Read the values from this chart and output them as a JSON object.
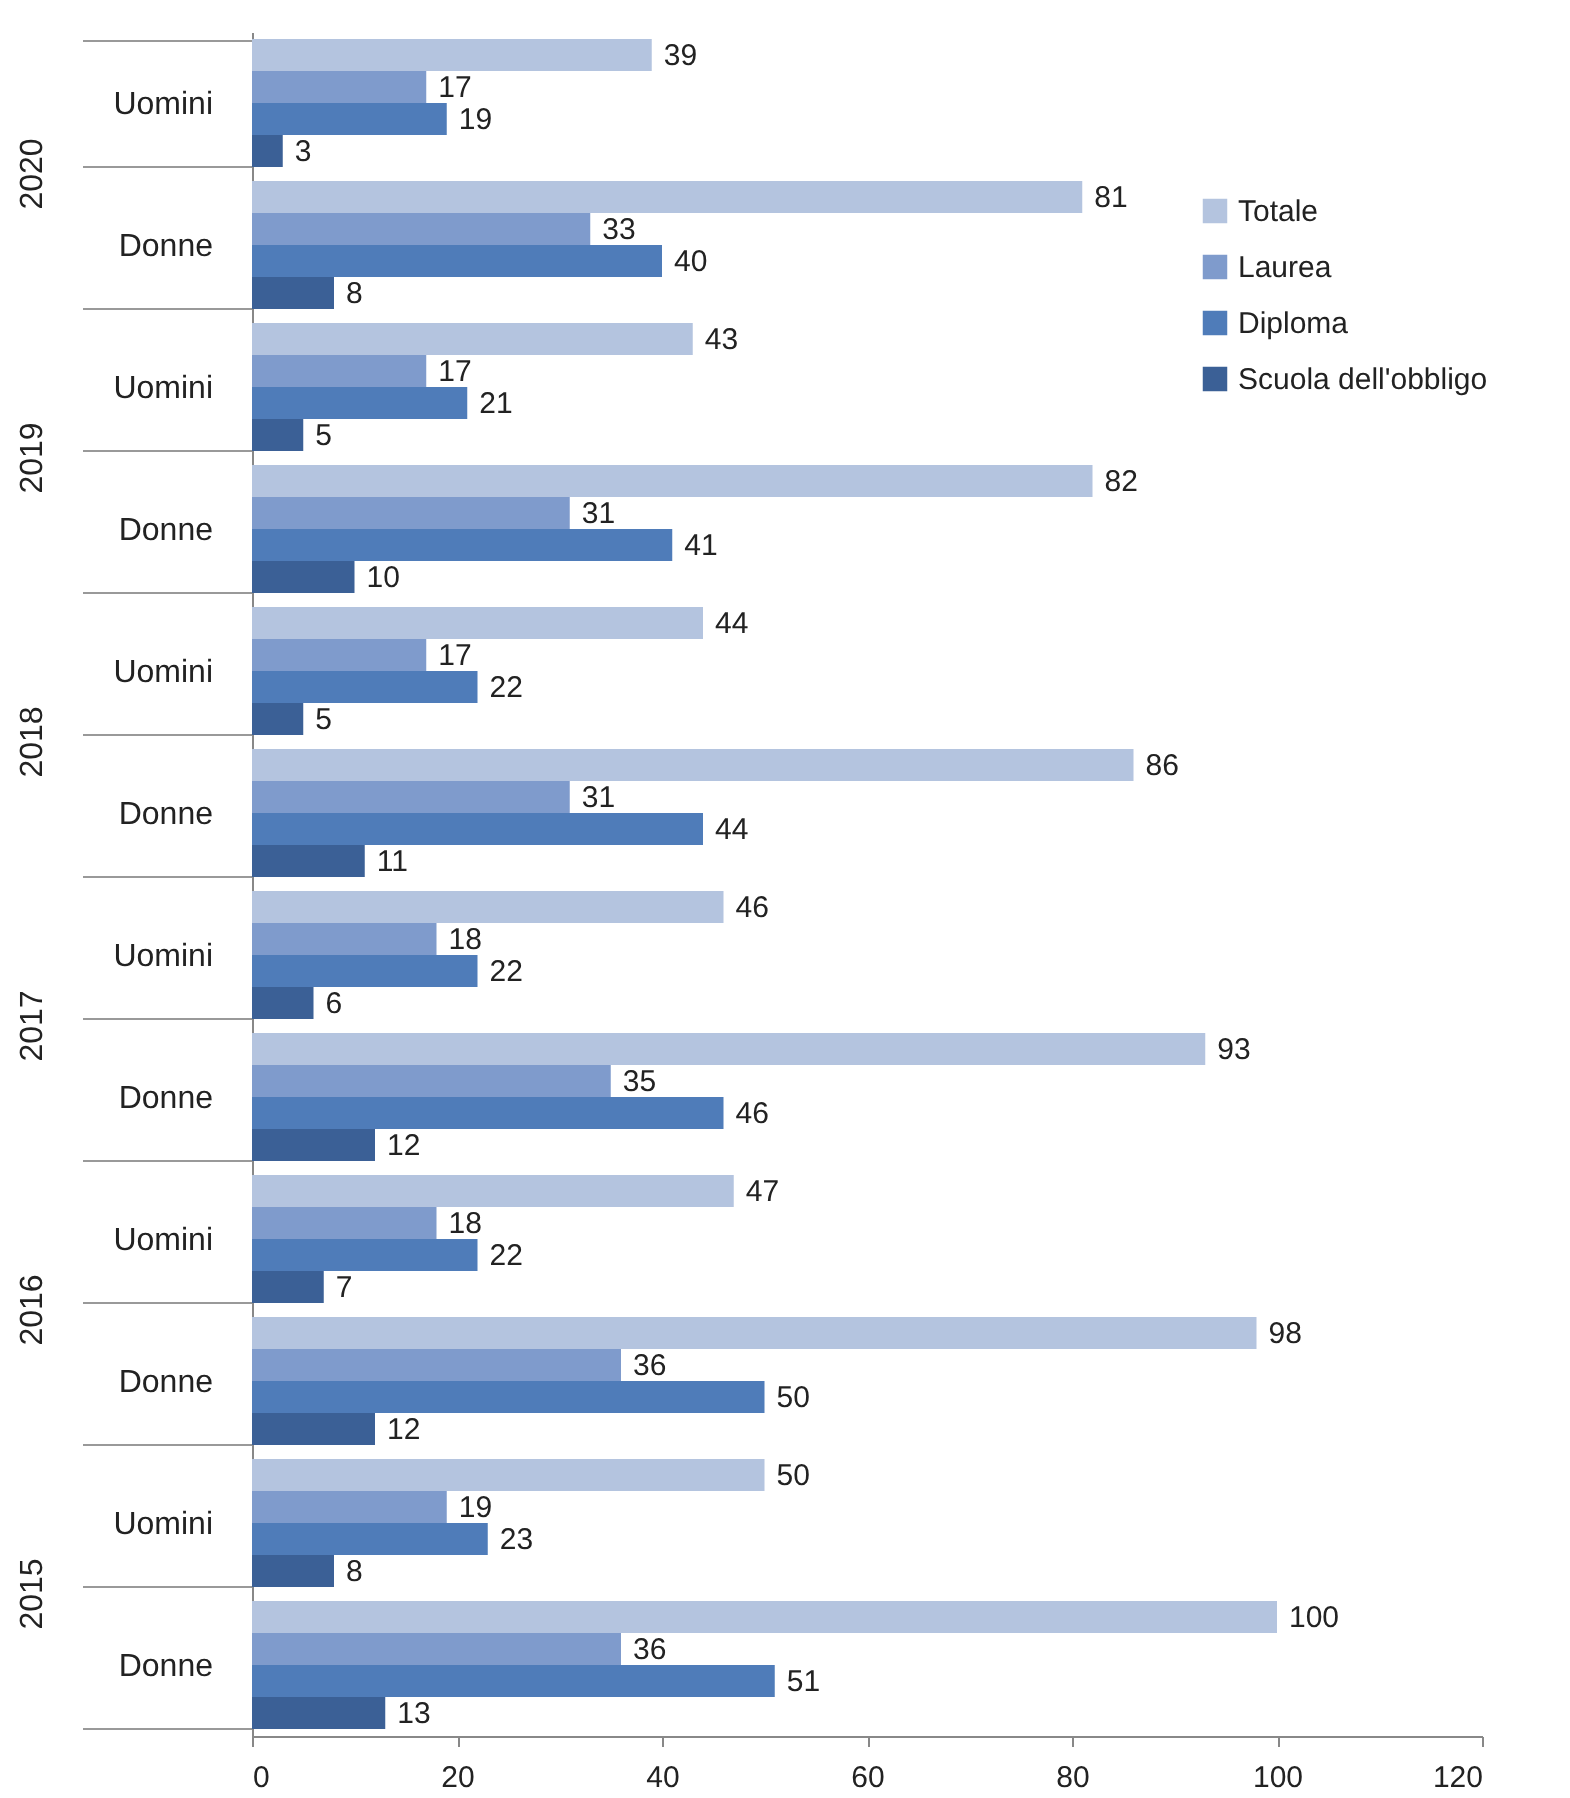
{
  "chart_data": {
    "type": "bar",
    "orientation": "horizontal",
    "categories": [
      "Uomini",
      "Donne",
      "Uomini",
      "Donne",
      "Uomini",
      "Donne",
      "Uomini",
      "Donne",
      "Uomini",
      "Donne",
      "Uomini",
      "Donne"
    ],
    "series": [
      {
        "name": "Totale",
        "color": "#b4c4df",
        "values": [
          39,
          81,
          43,
          82,
          44,
          86,
          46,
          93,
          47,
          98,
          50,
          100
        ]
      },
      {
        "name": "Laurea",
        "color": "#7f9bcc",
        "values": [
          17,
          33,
          17,
          31,
          17,
          31,
          18,
          35,
          18,
          36,
          19,
          36
        ]
      },
      {
        "name": "Diploma",
        "color": "#4f7cb9",
        "values": [
          19,
          40,
          21,
          41,
          22,
          44,
          22,
          46,
          22,
          50,
          23,
          51
        ]
      },
      {
        "name": "Scuola dell'obbligo",
        "color": "#3b6096",
        "values": [
          3,
          8,
          5,
          10,
          5,
          11,
          6,
          12,
          7,
          12,
          8,
          13
        ]
      }
    ],
    "annotations": [
      "2020",
      "2019",
      "2018",
      "2017",
      "2016",
      "2015"
    ],
    "xlim": [
      0,
      120
    ],
    "xticks": [
      0,
      20,
      40,
      60,
      80,
      100,
      120
    ],
    "grid": false,
    "legend": "right",
    "data_labels": true
  }
}
